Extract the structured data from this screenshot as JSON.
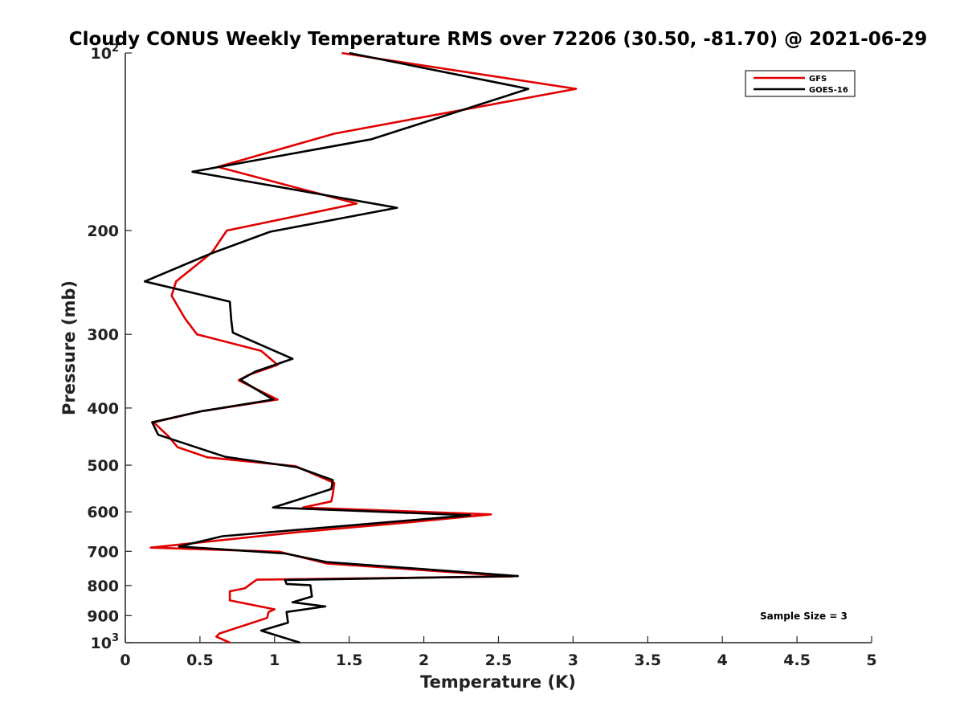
{
  "chart_data": {
    "type": "line",
    "title": "Cloudy CONUS Weekly Temperature RMS over 72206 (30.50, -81.70) @ 2021-06-29",
    "xlabel": "Temperature (K)",
    "ylabel": "Pressure (mb)",
    "xlim": [
      0,
      5
    ],
    "ylim": [
      1000,
      100
    ],
    "yscale": "log",
    "x_ticks": [
      "0",
      "0.5",
      "1",
      "1.5",
      "2",
      "2.5",
      "3",
      "3.5",
      "4",
      "4.5",
      "5"
    ],
    "y_ticks": [
      {
        "value": 100,
        "base": "10",
        "exp": "2"
      },
      {
        "value": 200,
        "label": "200"
      },
      {
        "value": 300,
        "label": "300"
      },
      {
        "value": 400,
        "label": "400"
      },
      {
        "value": 500,
        "label": "500"
      },
      {
        "value": 600,
        "label": "600"
      },
      {
        "value": 700,
        "label": "700"
      },
      {
        "value": 800,
        "label": "800"
      },
      {
        "value": 900,
        "label": "900"
      },
      {
        "value": 1000,
        "base": "10",
        "exp": "3"
      }
    ],
    "grid": false,
    "legend_position": "top-right",
    "annotation": "Sample Size = 3",
    "series": [
      {
        "name": "GFS",
        "color": "#e00000",
        "points": [
          [
            1.45,
            100
          ],
          [
            3.02,
            115
          ],
          [
            1.4,
            137
          ],
          [
            0.62,
            156
          ],
          [
            1.55,
            180
          ],
          [
            0.68,
            200
          ],
          [
            0.58,
            218
          ],
          [
            0.34,
            244
          ],
          [
            0.31,
            258
          ],
          [
            0.4,
            282
          ],
          [
            0.48,
            300
          ],
          [
            0.91,
            320
          ],
          [
            1.02,
            338
          ],
          [
            0.82,
            352
          ],
          [
            0.76,
            359
          ],
          [
            1.02,
            387
          ],
          [
            0.51,
            405
          ],
          [
            0.19,
            423
          ],
          [
            0.29,
            447
          ],
          [
            0.35,
            466
          ],
          [
            0.55,
            485
          ],
          [
            1.14,
            502
          ],
          [
            1.4,
            536
          ],
          [
            1.39,
            560
          ],
          [
            1.38,
            576
          ],
          [
            1.19,
            590
          ],
          [
            2.45,
            606
          ],
          [
            1.9,
            625
          ],
          [
            1.14,
            650
          ],
          [
            0.17,
            690
          ],
          [
            1.03,
            701
          ],
          [
            1.35,
            734
          ],
          [
            2.6,
            772
          ],
          [
            0.88,
            782
          ],
          [
            0.8,
            809
          ],
          [
            0.7,
            818
          ],
          [
            0.7,
            848
          ],
          [
            1.0,
            878
          ],
          [
            0.96,
            887
          ],
          [
            0.95,
            908
          ],
          [
            0.63,
            965
          ],
          [
            0.61,
            977
          ],
          [
            0.7,
            1000
          ]
        ]
      },
      {
        "name": "GOES-16",
        "color": "#000000",
        "points": [
          [
            1.5,
            100
          ],
          [
            2.7,
            115
          ],
          [
            1.65,
            140
          ],
          [
            0.45,
            159
          ],
          [
            1.82,
            183
          ],
          [
            0.97,
            201
          ],
          [
            0.57,
            219
          ],
          [
            0.13,
            244
          ],
          [
            0.7,
            264
          ],
          [
            0.71,
            284
          ],
          [
            0.72,
            298
          ],
          [
            1.12,
            330
          ],
          [
            0.87,
            347
          ],
          [
            0.8,
            355
          ],
          [
            0.77,
            358
          ],
          [
            0.99,
            387
          ],
          [
            0.51,
            405
          ],
          [
            0.18,
            423
          ],
          [
            0.22,
            444
          ],
          [
            0.67,
            484
          ],
          [
            1.15,
            504
          ],
          [
            1.39,
            530
          ],
          [
            1.38,
            549
          ],
          [
            1.13,
            575
          ],
          [
            0.99,
            590
          ],
          [
            2.31,
            608
          ],
          [
            0.65,
            660
          ],
          [
            0.36,
            687
          ],
          [
            1.07,
            706
          ],
          [
            1.35,
            730
          ],
          [
            2.63,
            771
          ],
          [
            1.07,
            783
          ],
          [
            1.08,
            795
          ],
          [
            1.24,
            799
          ],
          [
            1.25,
            835
          ],
          [
            1.12,
            854
          ],
          [
            1.34,
            868
          ],
          [
            1.08,
            887
          ],
          [
            1.09,
            925
          ],
          [
            0.91,
            954
          ],
          [
            1.17,
            1000
          ]
        ]
      }
    ]
  }
}
